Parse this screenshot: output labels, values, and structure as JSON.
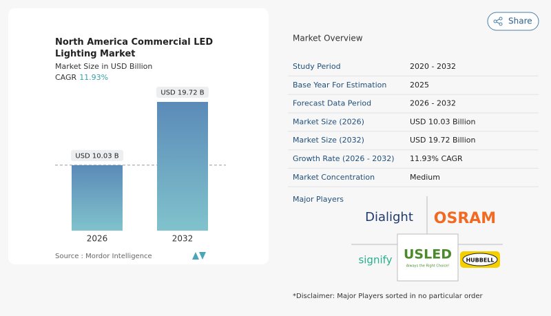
{
  "chart_data": {
    "type": "bar",
    "title": "North America Commercial LED Lighting Market",
    "subtitle": "Market Size in USD Billion",
    "cagr_label": "CAGR",
    "cagr_value": "11.93%",
    "categories": [
      "2026",
      "2032"
    ],
    "values": [
      10.03,
      19.72
    ],
    "value_labels": [
      "USD 10.03 B",
      "USD 19.72 B"
    ],
    "source": "Source :  Mordor Intelligence"
  },
  "share_button": "Share",
  "overview": {
    "title": "Market Overview",
    "rows": [
      [
        "Study Period",
        "2020 - 2032"
      ],
      [
        "Base Year For Estimation",
        "2025"
      ],
      [
        "Forecast Data Period",
        "2026 - 2032"
      ],
      [
        "Market Size (2026)",
        "USD 10.03 Billion"
      ],
      [
        "Market Size (2032)",
        "USD 19.72 Billion"
      ],
      [
        "Growth Rate (2026 - 2032)",
        "11.93% CAGR"
      ],
      [
        "Market Concentration",
        "Medium"
      ]
    ]
  },
  "players": {
    "title": "Major Players",
    "logos": [
      "Dialight",
      "OSRAM",
      "signify",
      "USLED",
      "Always the Right Choice!",
      "HUBBELL"
    ]
  },
  "disclaimer": "*Disclaimer: Major Players sorted in no particular order"
}
